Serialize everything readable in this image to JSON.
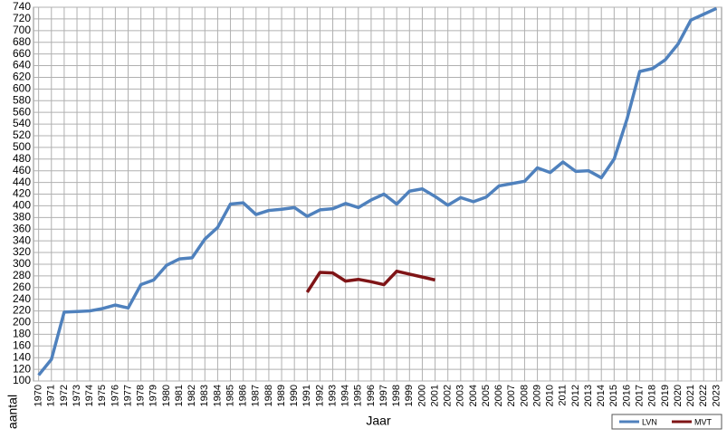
{
  "chart_data": {
    "type": "line",
    "x": [
      1970,
      1971,
      1972,
      1973,
      1974,
      1975,
      1976,
      1977,
      1978,
      1979,
      1980,
      1981,
      1982,
      1983,
      1984,
      1985,
      1986,
      1987,
      1988,
      1989,
      1990,
      1991,
      1992,
      1993,
      1994,
      1995,
      1996,
      1997,
      1998,
      1999,
      2000,
      2001,
      2002,
      2003,
      2004,
      2005,
      2006,
      2007,
      2008,
      2009,
      2010,
      2011,
      2012,
      2013,
      2014,
      2015,
      2016,
      2017,
      2018,
      2019,
      2020,
      2021,
      2022,
      2023
    ],
    "series": [
      {
        "name": "LVN",
        "color": "#4f81bd",
        "values": [
          110,
          137,
          218,
          219,
          220,
          224,
          230,
          225,
          265,
          273,
          298,
          309,
          311,
          343,
          363,
          403,
          405,
          385,
          392,
          394,
          397,
          382,
          393,
          395,
          404,
          397,
          410,
          420,
          403,
          425,
          429,
          416,
          401,
          414,
          407,
          415,
          434,
          438,
          442,
          465,
          457,
          475,
          459,
          460,
          448,
          480,
          548,
          630,
          635,
          650,
          677,
          718,
          728,
          738
        ]
      },
      {
        "name": "MVT",
        "color": "#7f1416",
        "values": [
          null,
          null,
          null,
          null,
          null,
          null,
          null,
          null,
          null,
          null,
          null,
          null,
          null,
          null,
          null,
          null,
          null,
          null,
          null,
          null,
          null,
          252,
          286,
          285,
          271,
          274,
          270,
          265,
          288,
          283,
          278,
          273,
          null,
          null,
          null,
          null,
          null,
          null,
          null,
          null,
          null,
          null,
          null,
          null,
          null,
          null,
          null,
          null,
          null,
          null,
          null,
          null,
          null,
          null
        ]
      }
    ],
    "xlabel": "Jaar",
    "ylabel": "aantal",
    "xlim": [
      1969.6,
      2023.4
    ],
    "ylim": [
      100,
      740
    ],
    "yticks": [
      100,
      120,
      140,
      160,
      180,
      200,
      220,
      240,
      260,
      280,
      300,
      320,
      340,
      360,
      380,
      400,
      420,
      440,
      460,
      480,
      500,
      520,
      540,
      560,
      580,
      600,
      620,
      640,
      660,
      680,
      700,
      720,
      740
    ],
    "grid": true,
    "legend": "bottom-right"
  }
}
